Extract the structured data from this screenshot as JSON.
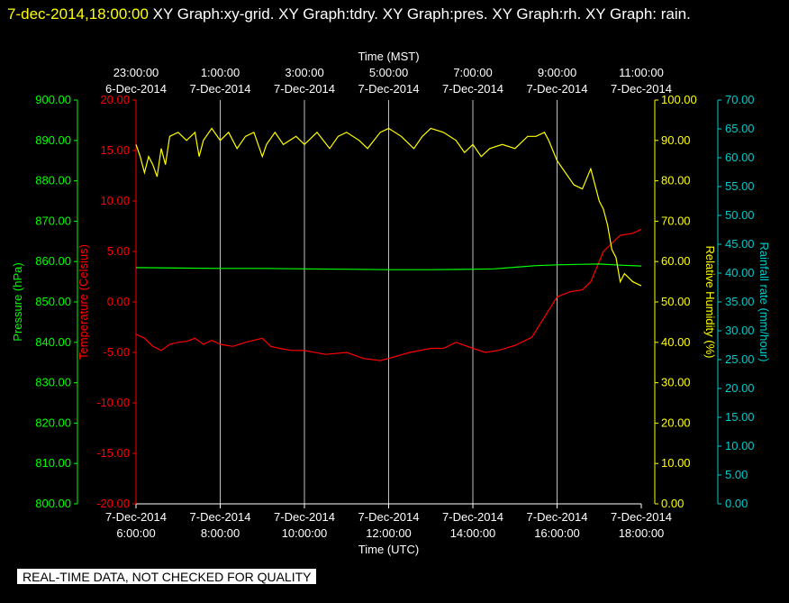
{
  "header": {
    "timestamp": "7-dec-2014,18:00:00",
    "graphs": "  XY Graph:xy-grid.  XY Graph:tdry.  XY Graph:pres.  XY Graph:rh.  XY Graph: rain."
  },
  "notice": "REAL-TIME DATA, NOT CHECKED FOR QUALITY",
  "chart_data": {
    "type": "line",
    "top_axis": {
      "title": "Time (MST)",
      "ticks": [
        {
          "time": "23:00:00",
          "date": "6-Dec-2014"
        },
        {
          "time": "1:00:00",
          "date": "7-Dec-2014"
        },
        {
          "time": "3:00:00",
          "date": "7-Dec-2014"
        },
        {
          "time": "5:00:00",
          "date": "7-Dec-2014"
        },
        {
          "time": "7:00:00",
          "date": "7-Dec-2014"
        },
        {
          "time": "9:00:00",
          "date": "7-Dec-2014"
        },
        {
          "time": "11:00:00",
          "date": "7-Dec-2014"
        }
      ]
    },
    "bottom_axis": {
      "title": "Time (UTC)",
      "xlim": [
        6,
        18
      ],
      "ticks": [
        {
          "date": "7-Dec-2014",
          "time": "6:00:00"
        },
        {
          "date": "7-Dec-2014",
          "time": "8:00:00"
        },
        {
          "date": "7-Dec-2014",
          "time": "10:00:00"
        },
        {
          "date": "7-Dec-2014",
          "time": "12:00:00"
        },
        {
          "date": "7-Dec-2014",
          "time": "14:00:00"
        },
        {
          "date": "7-Dec-2014",
          "time": "16:00:00"
        },
        {
          "date": "7-Dec-2014",
          "time": "18:00:00"
        }
      ]
    },
    "axes": {
      "pressure": {
        "label": "Pressure (hPa)",
        "color": "#00ff00",
        "ylim": [
          800,
          900
        ],
        "ticks": [
          "800.00",
          "810.00",
          "820.00",
          "830.00",
          "840.00",
          "850.00",
          "860.00",
          "870.00",
          "880.00",
          "890.00",
          "900.00"
        ]
      },
      "temperature": {
        "label": "Temperature (Celsius)",
        "color": "#ff0000",
        "ylim": [
          -20,
          20
        ],
        "ticks": [
          "-20.00",
          "-15.00",
          "-10.00",
          "-5.00",
          "0.00",
          "5.00",
          "10.00",
          "15.00",
          "20.00"
        ]
      },
      "humidity": {
        "label": "Relative Humidity (%)",
        "color": "#ffff00",
        "ylim": [
          0,
          100
        ],
        "ticks": [
          "0.00",
          "10.00",
          "20.00",
          "30.00",
          "40.00",
          "50.00",
          "60.00",
          "70.00",
          "80.00",
          "90.00",
          "100.00"
        ]
      },
      "rain": {
        "label": "Rainfall rate (mm/hour)",
        "color": "#00cccc",
        "ylim": [
          0,
          70
        ],
        "ticks": [
          "0.00",
          "5.00",
          "10.00",
          "15.00",
          "20.00",
          "25.00",
          "30.00",
          "35.00",
          "40.00",
          "45.00",
          "50.00",
          "55.00",
          "60.00",
          "65.00",
          "70.00"
        ]
      }
    },
    "series": [
      {
        "axis": "temperature",
        "color": "#ff0000",
        "x": [
          6.0,
          6.2,
          6.4,
          6.6,
          6.8,
          7.0,
          7.2,
          7.4,
          7.6,
          7.8,
          8.0,
          8.3,
          8.6,
          9.0,
          9.2,
          9.4,
          9.7,
          10.0,
          10.5,
          11.0,
          11.4,
          11.8,
          12.0,
          12.5,
          13.0,
          13.3,
          13.6,
          14.0,
          14.3,
          14.6,
          15.0,
          15.4,
          15.7,
          16.0,
          16.3,
          16.6,
          16.8,
          17.0,
          17.1,
          17.3,
          17.5,
          17.8,
          18.0
        ],
        "y": [
          -3.2,
          -3.6,
          -4.4,
          -4.8,
          -4.2,
          -4.0,
          -3.9,
          -3.6,
          -4.2,
          -3.8,
          -4.2,
          -4.4,
          -4.0,
          -3.6,
          -4.4,
          -4.6,
          -4.8,
          -4.8,
          -5.2,
          -5.0,
          -5.6,
          -5.8,
          -5.6,
          -5.0,
          -4.6,
          -4.6,
          -4.0,
          -4.6,
          -5.0,
          -4.8,
          -4.3,
          -3.5,
          -1.5,
          0.5,
          1.0,
          1.2,
          2.0,
          4.0,
          5.0,
          5.8,
          6.6,
          6.8,
          7.2
        ]
      },
      {
        "axis": "pressure",
        "color": "#00ff00",
        "x": [
          6.0,
          7.0,
          8.0,
          9.0,
          10.0,
          11.0,
          12.0,
          13.0,
          14.0,
          14.5,
          15.0,
          15.5,
          16.0,
          16.5,
          17.0,
          17.5,
          18.0
        ],
        "y": [
          858.5,
          858.4,
          858.3,
          858.3,
          858.2,
          858.1,
          858.0,
          858.0,
          858.1,
          858.2,
          858.6,
          859.0,
          859.2,
          859.3,
          859.4,
          859.1,
          858.9
        ]
      },
      {
        "axis": "humidity",
        "color": "#ffff00",
        "x": [
          6.0,
          6.1,
          6.2,
          6.3,
          6.4,
          6.5,
          6.6,
          6.7,
          6.8,
          7.0,
          7.2,
          7.4,
          7.5,
          7.6,
          7.8,
          8.0,
          8.2,
          8.4,
          8.6,
          8.8,
          9.0,
          9.1,
          9.3,
          9.5,
          9.8,
          10.0,
          10.3,
          10.6,
          10.8,
          11.0,
          11.3,
          11.5,
          11.8,
          12.0,
          12.3,
          12.6,
          12.8,
          13.0,
          13.3,
          13.6,
          13.8,
          14.0,
          14.2,
          14.4,
          14.7,
          15.0,
          15.3,
          15.5,
          15.7,
          15.8,
          16.0,
          16.2,
          16.4,
          16.6,
          16.8,
          17.0,
          17.1,
          17.2,
          17.3,
          17.4,
          17.5,
          17.6,
          17.8,
          18.0
        ],
        "y": [
          89,
          86,
          82,
          86,
          84,
          81,
          88,
          84,
          91,
          92,
          90,
          92,
          86,
          90,
          93,
          90,
          92,
          88,
          91,
          92,
          86,
          89,
          92,
          89,
          91,
          89,
          92,
          88,
          91,
          92,
          90,
          88,
          92,
          93,
          91,
          88,
          91,
          93,
          92,
          90,
          87,
          89,
          86,
          88,
          89,
          88,
          91,
          91,
          92,
          90,
          85,
          82,
          79,
          78,
          83,
          75,
          73,
          69,
          63,
          61,
          55,
          57,
          55,
          54
        ]
      },
      {
        "axis": "rain",
        "color": "#00cccc",
        "x": [],
        "y": []
      }
    ]
  }
}
